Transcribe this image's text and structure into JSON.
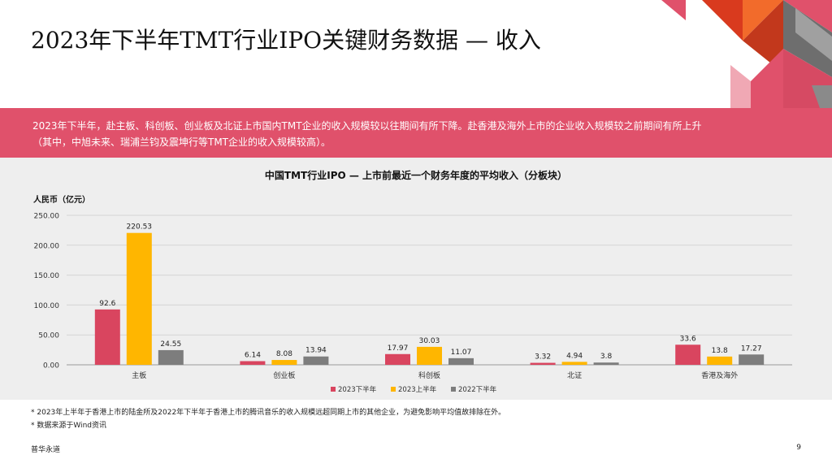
{
  "title": "2023年下半年TMT行业IPO关键财务数据 — 收入",
  "banner": {
    "line1": "2023年下半年，赴主板、科创板、创业板及北证上市国内TMT企业的收入规模较以往期间有所下降。赴香港及海外上市的企业收入规模较之前期间有所上升",
    "line2": "（其中，中旭未来、瑞浦兰钧及震坤行等TMT企业的收入规模较高）。"
  },
  "chart_data": {
    "type": "bar",
    "title": "中国TMT行业IPO — 上市前最近一个财务年度的平均收入（分板块）",
    "ylabel": "人民币（亿元）",
    "xlabel": "",
    "categories": [
      "主板",
      "创业板",
      "科创板",
      "北证",
      "香港及海外"
    ],
    "series": [
      {
        "name": "2023下半年",
        "color": "#d9455f",
        "values": [
          92.6,
          6.14,
          17.97,
          3.32,
          33.6
        ],
        "labels": [
          "92.6",
          "6.14",
          "17.97",
          "3.32",
          "33.6"
        ]
      },
      {
        "name": "2023上半年",
        "color": "#ffb600",
        "values": [
          220.53,
          8.08,
          30.03,
          4.94,
          13.8
        ],
        "labels": [
          "220.53",
          "8.08",
          "30.03",
          "4.94",
          "13.8"
        ]
      },
      {
        "name": "2022下半年",
        "color": "#7d7d7d",
        "values": [
          24.55,
          13.94,
          11.07,
          3.8,
          17.27
        ],
        "labels": [
          "24.55",
          "13.94",
          "11.07",
          "3.8",
          "17.27"
        ]
      }
    ],
    "ylim": [
      0,
      250
    ],
    "yticks": [
      "0.00",
      "50.00",
      "100.00",
      "150.00",
      "200.00",
      "250.00"
    ],
    "grid": true,
    "legend": "bottom"
  },
  "notes": [
    "*  2023年上半年于香港上市的陆金所及2022年下半年于香港上市的腾讯音乐的收入规模远超同期上市的其他企业，为避免影响平均值故排除在外。",
    "*  数据来源于Wind资讯"
  ],
  "footer": {
    "brand": "普华永道",
    "page": "9"
  }
}
